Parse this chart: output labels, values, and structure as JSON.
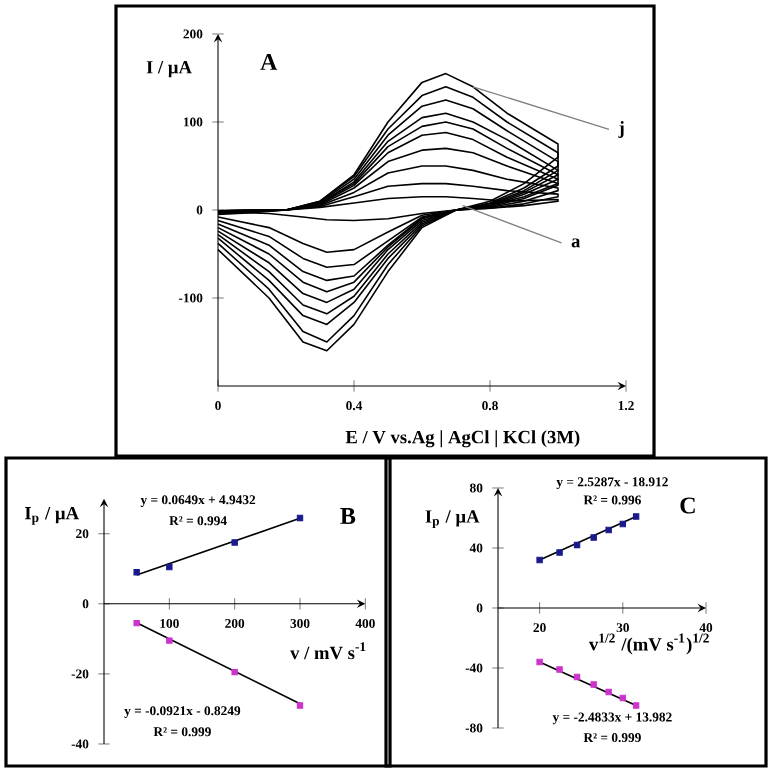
{
  "chart_data": [
    {
      "type": "line",
      "title": "A",
      "xlabel": "E / V vs.Ag | AgCl | KCl (3M)",
      "ylabel": "I / µA",
      "x": [
        0,
        0.1,
        0.2,
        0.3,
        0.4,
        0.5,
        0.6,
        0.67,
        0.75,
        0.85,
        1.0,
        1.0,
        0.9,
        0.8,
        0.7,
        0.6,
        0.5,
        0.4,
        0.32,
        0.25,
        0.15,
        0
      ],
      "series": [
        {
          "color": "#000000",
          "values": [
            -5,
            -3,
            0,
            10,
            40,
            100,
            145,
            155,
            140,
            110,
            75,
            60,
            30,
            10,
            0,
            -20,
            -70,
            -130,
            -160,
            -150,
            -100,
            -45
          ]
        },
        {
          "color": "#000000",
          "values": [
            -4,
            -2,
            0,
            10,
            38,
            92,
            130,
            140,
            128,
            100,
            65,
            50,
            25,
            8,
            0,
            -18,
            -62,
            -120,
            -150,
            -138,
            -90,
            -38
          ]
        },
        {
          "color": "#000000",
          "values": [
            -3,
            -2,
            0,
            9,
            35,
            85,
            118,
            125,
            115,
            90,
            55,
            45,
            22,
            7,
            0,
            -16,
            -55,
            -105,
            -130,
            -120,
            -80,
            -32
          ]
        },
        {
          "color": "#000000",
          "values": [
            -3,
            -1,
            0,
            8,
            32,
            78,
            105,
            110,
            100,
            80,
            45,
            40,
            20,
            6,
            0,
            -14,
            -50,
            -98,
            -118,
            -108,
            -70,
            -28
          ]
        },
        {
          "color": "#000000",
          "values": [
            -2,
            -1,
            0,
            8,
            30,
            72,
            95,
            100,
            92,
            70,
            40,
            35,
            18,
            5,
            0,
            -12,
            -45,
            -90,
            -105,
            -95,
            -60,
            -24
          ]
        },
        {
          "color": "#000000",
          "values": [
            -2,
            -1,
            0,
            7,
            28,
            65,
            85,
            88,
            80,
            60,
            35,
            30,
            15,
            5,
            0,
            -10,
            -42,
            -82,
            -93,
            -82,
            -50,
            -20
          ]
        },
        {
          "color": "#000000",
          "values": [
            -2,
            -1,
            0,
            6,
            25,
            55,
            68,
            70,
            65,
            50,
            30,
            28,
            13,
            4,
            0,
            -9,
            -40,
            -75,
            -80,
            -70,
            -40,
            -16
          ]
        },
        {
          "color": "#000000",
          "values": [
            -1,
            0,
            0,
            5,
            20,
            42,
            50,
            50,
            45,
            35,
            25,
            22,
            10,
            3,
            0,
            -8,
            -35,
            -62,
            -65,
            -55,
            -30,
            -12
          ]
        },
        {
          "color": "#000000",
          "values": [
            -1,
            0,
            0,
            4,
            15,
            27,
            30,
            30,
            27,
            22,
            18,
            15,
            7,
            2,
            0,
            -6,
            -25,
            -45,
            -48,
            -38,
            -20,
            -8
          ]
        },
        {
          "color": "#000000",
          "values": [
            -1,
            0,
            0,
            3,
            8,
            13,
            15,
            15,
            13,
            10,
            12,
            10,
            5,
            2,
            0,
            -4,
            -10,
            -12,
            -11,
            -8,
            -4,
            -2
          ]
        }
      ],
      "annotations": [
        {
          "text": "j",
          "x": 0.75,
          "y": 140
        },
        {
          "text": "a",
          "x": 0.72,
          "y": 5
        }
      ],
      "xlim": [
        0,
        1.2
      ],
      "xticks": [
        0,
        0.4,
        0.8,
        1.2
      ],
      "ylim": [
        -200,
        200
      ],
      "yticks": [
        -100,
        0,
        100,
        200
      ]
    },
    {
      "type": "scatter",
      "title": "B",
      "xlabel": "v / mV s$^{-1}$",
      "ylabel": "I$_{p}$ / µA",
      "series": [
        {
          "x": [
            50,
            100,
            200,
            300
          ],
          "color": "#1a1a8c",
          "marker": "square",
          "values": [
            9,
            10.5,
            17.5,
            24.5
          ]
        },
        {
          "x": [
            50,
            100,
            200,
            300
          ],
          "color": "#cc33cc",
          "marker": "square",
          "values": [
            -5.5,
            -10.5,
            -19.5,
            -29
          ]
        },
        {
          "type": "line",
          "x": [
            50,
            300
          ],
          "color": "#000000",
          "values": [
            8.2,
            24.4
          ]
        },
        {
          "type": "line",
          "x": [
            50,
            300
          ],
          "color": "#000000",
          "values": [
            -5.4,
            -28.5
          ]
        }
      ],
      "annotations": [
        "y = 0.0649x + 4.9432",
        "R² = 0.994",
        "y = -0.0921x - 0.8249",
        "R² = 0.999"
      ],
      "xlim": [
        0,
        400
      ],
      "xticks": [
        100,
        200,
        300,
        400
      ],
      "ylim": [
        -40,
        30
      ],
      "yticks": [
        -40,
        -20,
        0,
        20
      ]
    },
    {
      "type": "scatter",
      "title": "C",
      "xlabel": "v$^{1/2}$ /(mV s$^{-1}$)$^{1/2}$",
      "ylabel": "I$_{p}$ / µA",
      "series": [
        {
          "x": [
            20,
            22.4,
            24.5,
            26.5,
            28.3,
            30,
            31.6
          ],
          "color": "#1a1a8c",
          "marker": "square",
          "values": [
            32,
            37,
            42,
            47,
            52,
            56,
            61
          ]
        },
        {
          "x": [
            20,
            22.4,
            24.5,
            26.5,
            28.3,
            30,
            31.6
          ],
          "color": "#cc33cc",
          "marker": "square",
          "values": [
            -36,
            -41,
            -46,
            -51,
            -56,
            -60,
            -65
          ]
        },
        {
          "type": "line",
          "x": [
            20,
            31.6
          ],
          "color": "#000000",
          "values": [
            32,
            61
          ]
        },
        {
          "type": "line",
          "x": [
            20,
            31.6
          ],
          "color": "#000000",
          "values": [
            -36,
            -65
          ]
        }
      ],
      "annotations": [
        "y = 2.5287x - 18.912",
        "R² = 0.996",
        "y = -2.4833x + 13.982",
        "R² = 0.999"
      ],
      "xlim": [
        15,
        40
      ],
      "xticks": [
        20,
        30,
        40
      ],
      "ylim": [
        -80,
        80
      ],
      "yticks": [
        -80,
        -40,
        0,
        40,
        80
      ]
    }
  ]
}
